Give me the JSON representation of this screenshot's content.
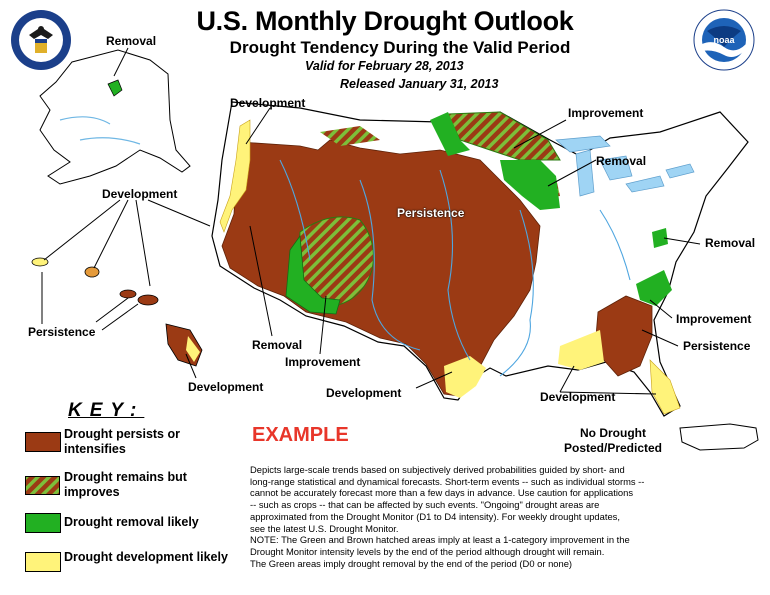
{
  "header": {
    "title": "U.S. Monthly Drought Outlook",
    "subtitle": "Drought Tendency During the Valid Period",
    "valid": "Valid for February 28, 2013",
    "released": "Released January 31, 2013"
  },
  "logos": {
    "left": "Department of Commerce seal",
    "right": "NOAA"
  },
  "map_labels": {
    "alaska_removal": "Removal",
    "development_nw": "Development",
    "development_hi": "Development",
    "persistence_hi": "Persistence",
    "development_hi_south": "Development",
    "persistence_center": "Persistence",
    "improvement_north": "Improvement",
    "removal_greatlakes": "Removal",
    "removal_east": "Removal",
    "improvement_se": "Improvement",
    "persistence_se": "Persistence",
    "removal_sw": "Removal",
    "improvement_sw": "Improvement",
    "development_tx": "Development",
    "development_gulf": "Development"
  },
  "key": {
    "title": "KEY:",
    "items": [
      {
        "label": "Drought persists or intensifies",
        "color": "#9b3a14"
      },
      {
        "label": "Drought remains but improves",
        "color": "#9b3a14"
      },
      {
        "label": "Drought removal likely",
        "color": "#22b022"
      },
      {
        "label": "Drought development likely",
        "color": "#fff37a"
      }
    ]
  },
  "example": "EXAMPLE",
  "no_drought": "No Drought Posted/Predicted",
  "description": [
    "Depicts large-scale trends based on subjectively derived probabilities guided by short- and",
    "long-range statistical and dynamical forecasts. Short-term events -- such as individual storms --",
    "cannot be accurately forecast more than a few days in advance. Use caution for applications",
    "-- such as crops -- that can be affected by such events. \"Ongoing\" drought areas are",
    "approximated from the Drought Monitor (D1 to D4 intensity). For weekly drought updates,",
    "see the latest U.S. Drought Monitor.",
    "NOTE: The Green and Brown hatched areas imply at least a 1-category improvement in the",
    "Drought Monitor intensity levels by the end of the period although drought will remain.",
    "The Green areas imply drought removal by the end of the period (D0 or none)"
  ],
  "colors": {
    "persist": "#9b3a14",
    "improve_hatch": "#7cbf3a",
    "removal": "#22b022",
    "development": "#fff37a",
    "water": "#9fd4f4"
  }
}
